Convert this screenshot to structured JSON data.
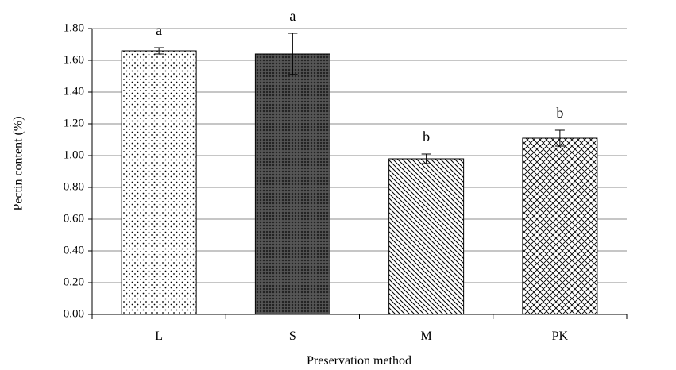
{
  "chart_data": {
    "type": "bar",
    "categories": [
      "L",
      "S",
      "M",
      "PK"
    ],
    "values": [
      1.66,
      1.64,
      0.98,
      1.11
    ],
    "errors": [
      0.02,
      0.13,
      0.03,
      0.05
    ],
    "significance_letters": [
      "a",
      "a",
      "b",
      "b"
    ],
    "patterns": [
      "dots",
      "dense-crosshatch",
      "diagonal-lines",
      "crosshatch"
    ],
    "xlabel": "Preservation method",
    "ylabel": "Pectin content (%)",
    "ylim": [
      0,
      1.8
    ],
    "yticks": [
      "0.00",
      "0.20",
      "0.40",
      "0.60",
      "0.80",
      "1.00",
      "1.20",
      "1.40",
      "1.60",
      "1.80"
    ],
    "grid": true,
    "legend": "none"
  },
  "colors": {
    "gridline": "#8c8c8c",
    "bar_stroke": "#000000"
  }
}
